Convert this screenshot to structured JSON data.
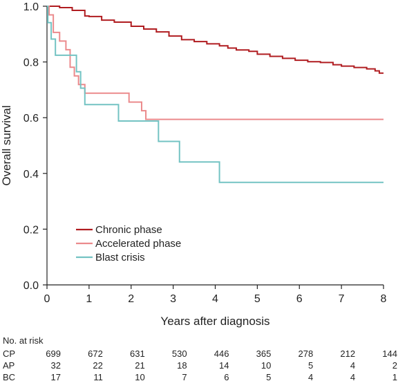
{
  "chart_data": {
    "type": "line",
    "subtype": "kaplan-meier step",
    "xlabel": "Years after diagnosis",
    "ylabel": "Overall survival",
    "xlim": [
      0,
      8
    ],
    "ylim": [
      0,
      1.0
    ],
    "x_ticks": [
      "0",
      "1",
      "2",
      "3",
      "4",
      "5",
      "6",
      "7",
      "8"
    ],
    "y_ticks": [
      "0.0",
      "0.2",
      "0.4",
      "0.6",
      "0.8",
      "1.0"
    ],
    "grid": false,
    "legend_position": "lower-left",
    "series": [
      {
        "name": "Chronic phase",
        "color": "#b01c20",
        "points": [
          [
            0,
            1.0
          ],
          [
            0.3,
            0.995
          ],
          [
            0.6,
            0.985
          ],
          [
            0.9,
            0.965
          ],
          [
            1.0,
            0.963
          ],
          [
            1.3,
            0.95
          ],
          [
            1.6,
            0.943
          ],
          [
            2.0,
            0.928
          ],
          [
            2.3,
            0.918
          ],
          [
            2.6,
            0.908
          ],
          [
            2.9,
            0.893
          ],
          [
            3.2,
            0.88
          ],
          [
            3.5,
            0.873
          ],
          [
            3.8,
            0.865
          ],
          [
            4.1,
            0.858
          ],
          [
            4.3,
            0.85
          ],
          [
            4.5,
            0.843
          ],
          [
            4.8,
            0.838
          ],
          [
            5.0,
            0.828
          ],
          [
            5.3,
            0.82
          ],
          [
            5.6,
            0.813
          ],
          [
            5.9,
            0.806
          ],
          [
            6.2,
            0.801
          ],
          [
            6.5,
            0.798
          ],
          [
            6.8,
            0.79
          ],
          [
            7.0,
            0.785
          ],
          [
            7.3,
            0.78
          ],
          [
            7.6,
            0.775
          ],
          [
            7.8,
            0.768
          ],
          [
            7.9,
            0.76
          ],
          [
            8.0,
            0.76
          ]
        ]
      },
      {
        "name": "Accelerated phase",
        "color": "#eb8a8c",
        "points": [
          [
            0,
            1.0
          ],
          [
            0.05,
            0.969
          ],
          [
            0.15,
            0.906
          ],
          [
            0.3,
            0.875
          ],
          [
            0.45,
            0.844
          ],
          [
            0.55,
            0.781
          ],
          [
            0.65,
            0.75
          ],
          [
            0.75,
            0.719
          ],
          [
            0.9,
            0.688
          ],
          [
            1.95,
            0.656
          ],
          [
            2.25,
            0.625
          ],
          [
            2.35,
            0.594
          ],
          [
            8.0,
            0.594
          ]
        ]
      },
      {
        "name": "Blast crisis",
        "color": "#73c3c3",
        "points": [
          [
            0,
            1.0
          ],
          [
            0.02,
            0.941
          ],
          [
            0.1,
            0.882
          ],
          [
            0.2,
            0.824
          ],
          [
            0.7,
            0.765
          ],
          [
            0.8,
            0.706
          ],
          [
            0.9,
            0.647
          ],
          [
            1.7,
            0.588
          ],
          [
            2.65,
            0.515
          ],
          [
            3.15,
            0.441
          ],
          [
            4.1,
            0.368
          ],
          [
            8.0,
            0.368
          ]
        ]
      }
    ],
    "risk_table": {
      "title": "No. at risk",
      "rows": [
        {
          "label": "CP",
          "values": [
            "699",
            "672",
            "631",
            "530",
            "446",
            "365",
            "278",
            "212",
            "144"
          ]
        },
        {
          "label": "AP",
          "values": [
            "32",
            "22",
            "21",
            "18",
            "14",
            "10",
            "5",
            "4",
            "2"
          ]
        },
        {
          "label": "BC",
          "values": [
            "17",
            "11",
            "10",
            "7",
            "6",
            "5",
            "4",
            "4",
            "1"
          ]
        }
      ]
    }
  }
}
